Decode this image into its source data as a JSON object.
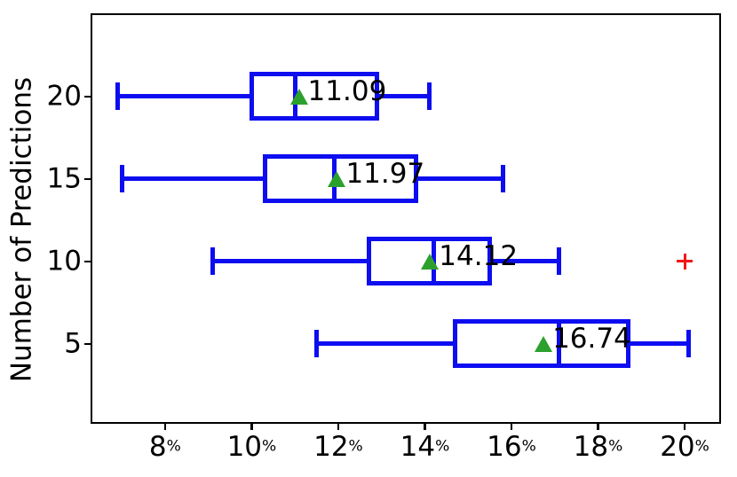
{
  "figure": {
    "background": "#ffffff"
  },
  "chart_data": {
    "type": "boxplot",
    "orientation": "horizontal",
    "title": "",
    "xlabel": "",
    "ylabel": "Number of Predictions",
    "x_unit": "percent",
    "x_tick_suffix": "%",
    "xlim": [
      6.28,
      20.84
    ],
    "x_ticks": [
      8,
      10,
      12,
      14,
      16,
      18,
      20
    ],
    "ylim": [
      0.03,
      5.01
    ],
    "grid": false,
    "legend": null,
    "series": [
      {
        "category": "20",
        "position": 4,
        "whisker_low": 6.9,
        "q1": 10.0,
        "median": 11.0,
        "q3": 12.9,
        "whisker_high": 14.1,
        "mean": 11.09,
        "mean_label": "11.09",
        "fliers": []
      },
      {
        "category": "15",
        "position": 3,
        "whisker_low": 7.0,
        "q1": 10.3,
        "median": 11.9,
        "q3": 13.8,
        "whisker_high": 15.8,
        "mean": 11.97,
        "mean_label": "11.97",
        "fliers": []
      },
      {
        "category": "10",
        "position": 2,
        "whisker_low": 9.1,
        "q1": 12.7,
        "median": 14.2,
        "q3": 15.5,
        "whisker_high": 17.1,
        "mean": 14.12,
        "mean_label": "14.12",
        "fliers": [
          20.0
        ]
      },
      {
        "category": "5",
        "position": 1,
        "whisker_low": 11.5,
        "q1": 14.7,
        "median": 17.1,
        "q3": 18.7,
        "whisker_high": 20.1,
        "mean": 16.74,
        "mean_label": "16.74",
        "fliers": []
      }
    ],
    "colors": {
      "box": "#0d0df0",
      "whisker": "#0d0df0",
      "median": "#0d0df0",
      "mean_marker": "#2ca02c",
      "flier": "#f51515",
      "spine": "#000000",
      "text": "#000000"
    }
  }
}
